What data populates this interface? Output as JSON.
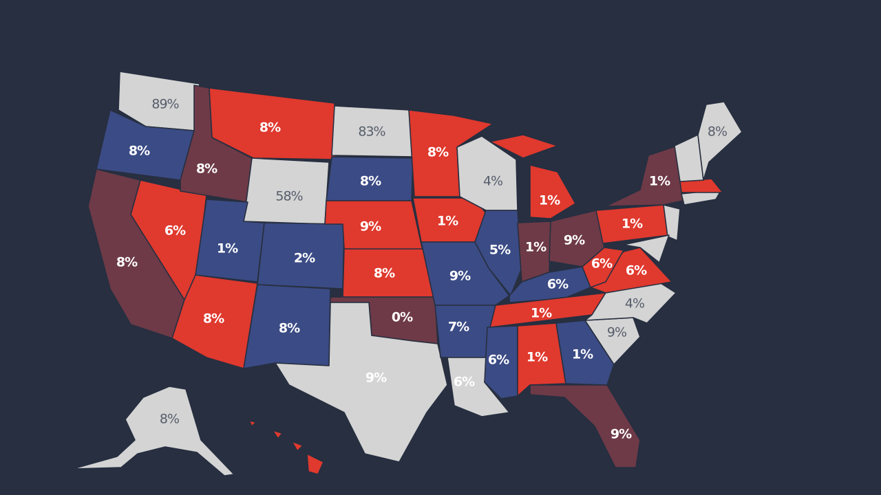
{
  "colors": {
    "background": "#272f40",
    "red": "#e0392e",
    "blue": "#3b4b85",
    "maroon": "#6e3a47",
    "gray": "#d4d4d4"
  },
  "labels": {
    "wa": "89%",
    "or": "8%",
    "ca": "8%",
    "nv": "6%",
    "id": "8%",
    "mt": "8%",
    "wy": "58%",
    "ut": "1%",
    "co": "2%",
    "az": "8%",
    "nm": "8%",
    "nd": "83%",
    "sd": "8%",
    "ne": "9%",
    "ks": "8%",
    "ok": "0%",
    "tx": "9%",
    "mn": "8%",
    "ia": "1%",
    "mo": "9%",
    "ar": "7%",
    "la": "6%",
    "wi": "4%",
    "il": "5%",
    "mi": "1%",
    "in": "1%",
    "oh": "9%",
    "ky": "6%",
    "tn": "1%",
    "ms": "6%",
    "al": "1%",
    "ga": "1%",
    "fl": "9%",
    "sc": "9%",
    "nc": "4%",
    "va": "6%",
    "wv": "6%",
    "pa": "1%",
    "ny": "1%",
    "me": "8%",
    "ak": "8%"
  }
}
